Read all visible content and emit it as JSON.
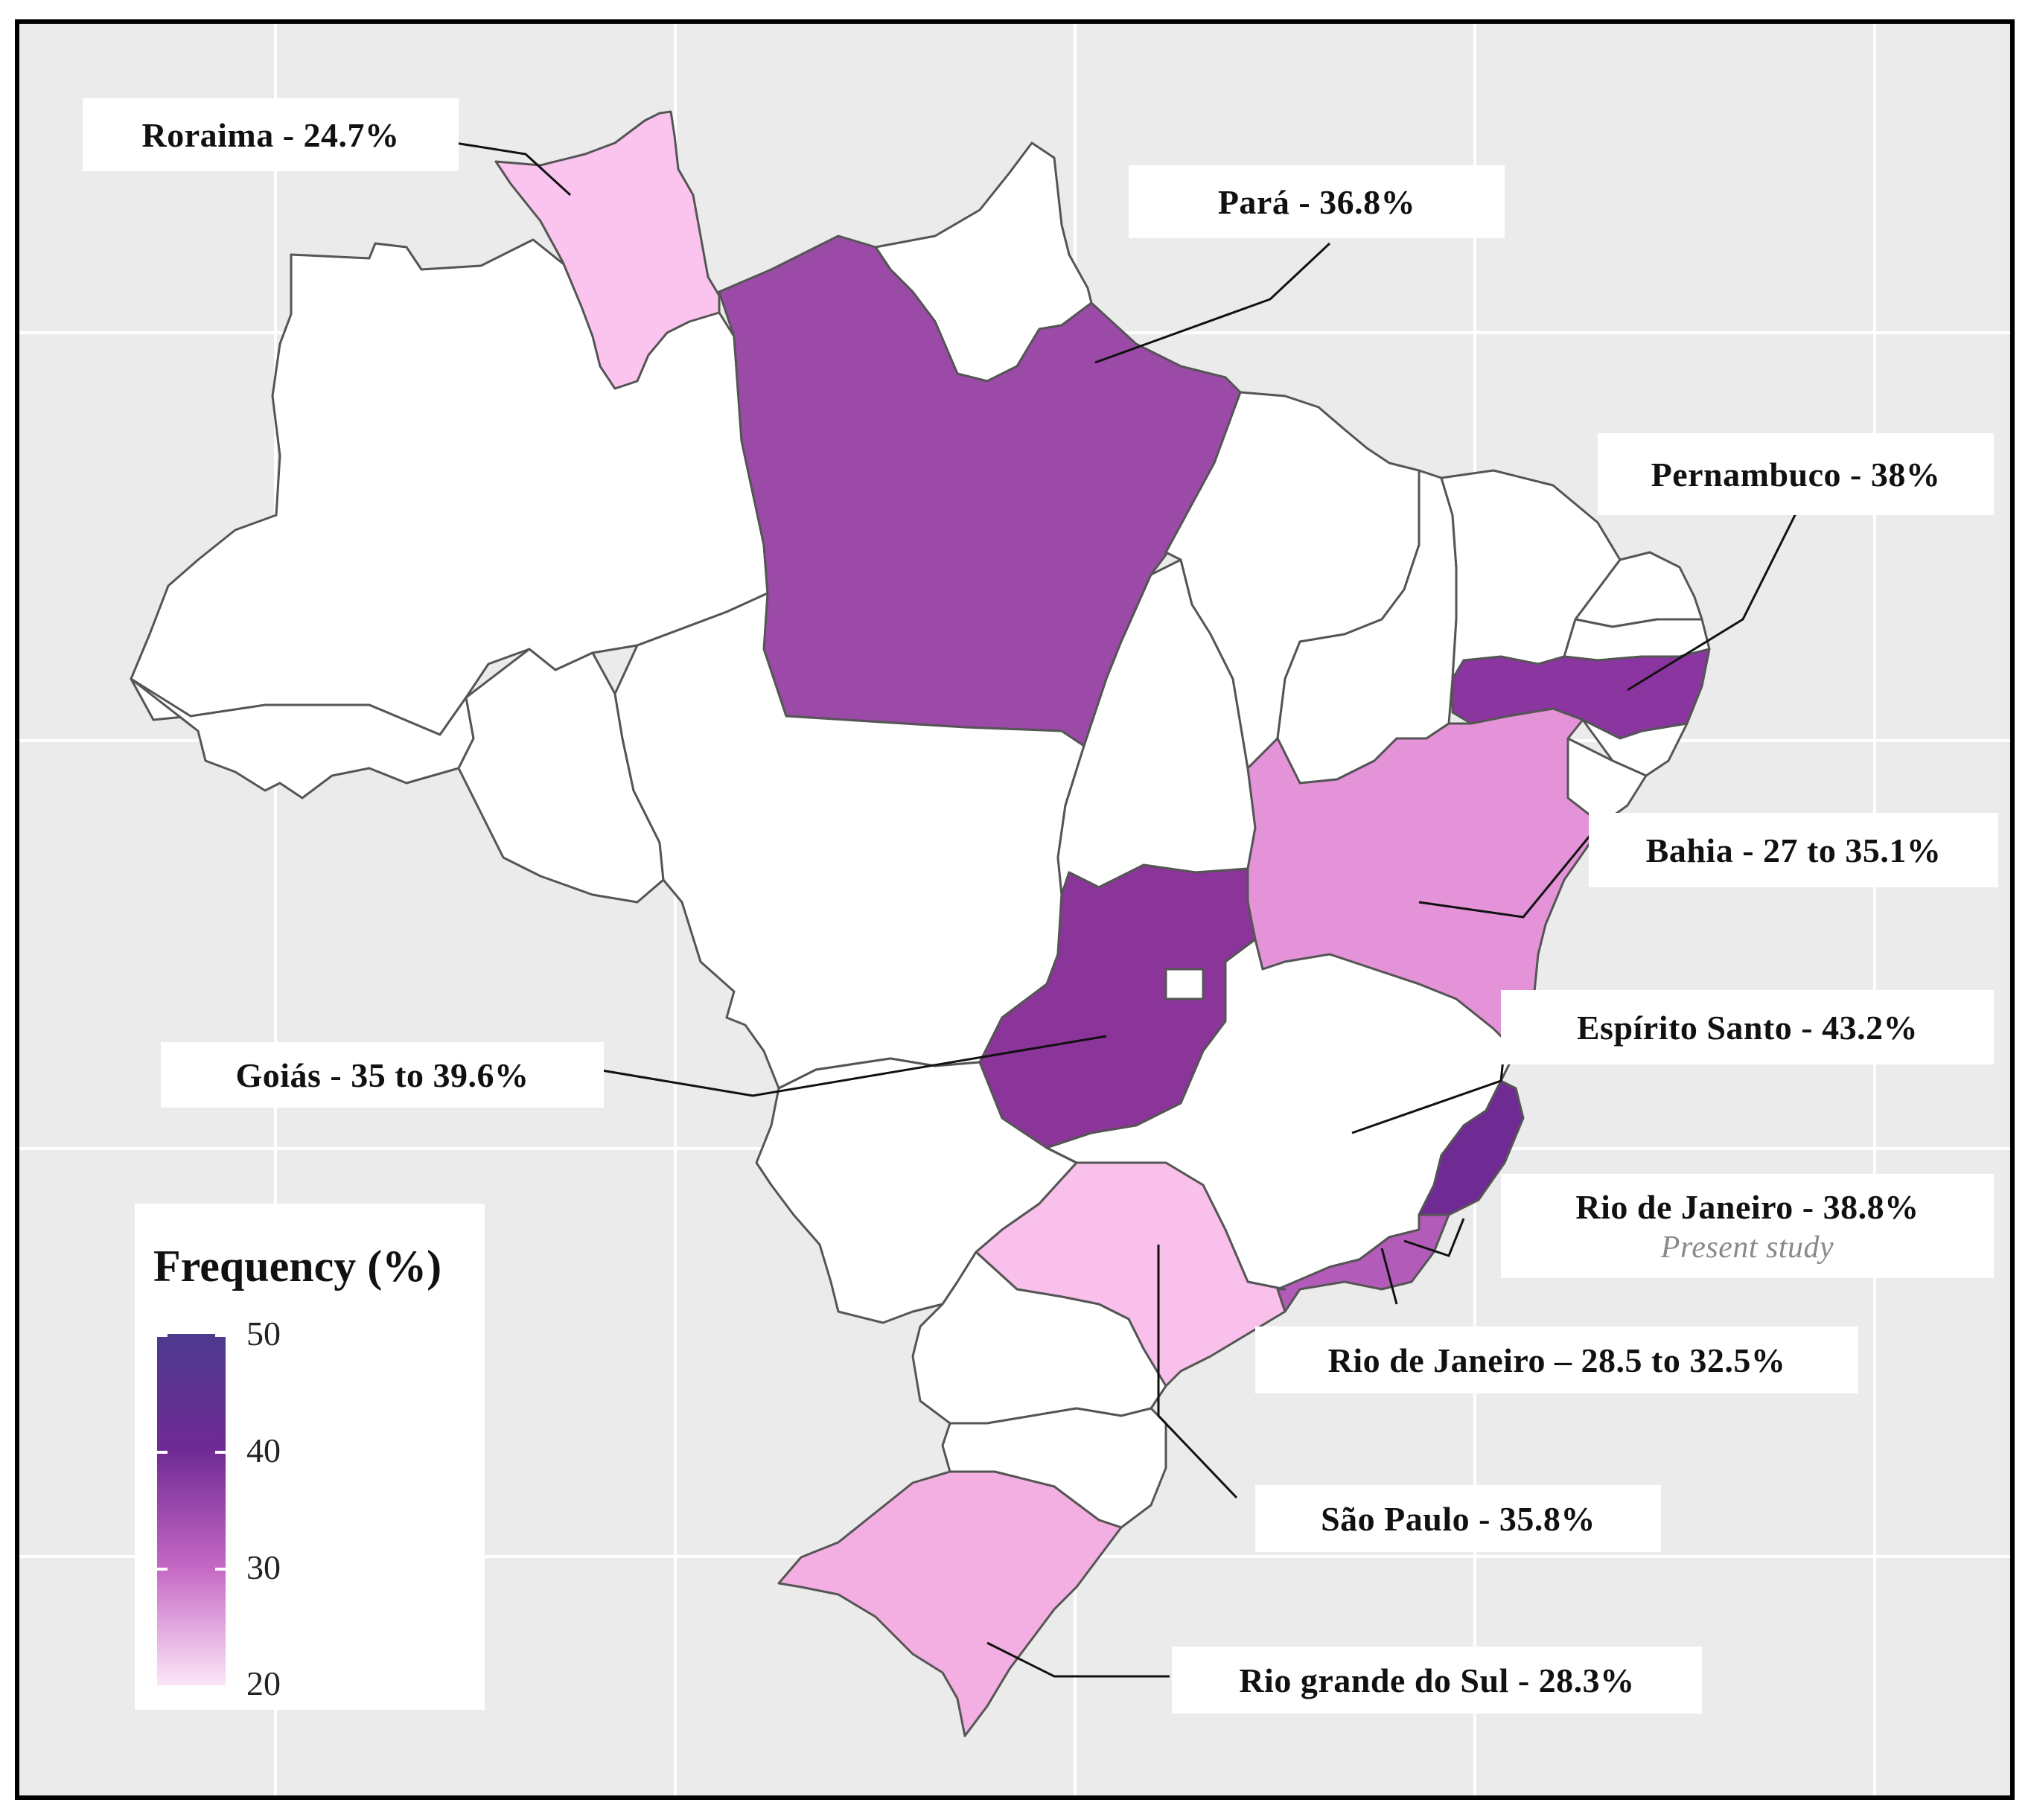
{
  "legend": {
    "title": "Frequency (%)",
    "ticks": [
      "50",
      "40",
      "30",
      "20"
    ],
    "range": [
      20,
      50
    ],
    "colors": {
      "low": "#fde6f8",
      "mid": "#c466c4",
      "high": "#4d3a8f"
    }
  },
  "labels": {
    "roraima": "Roraima - 24.7%",
    "para": "Pará - 36.8%",
    "pernambuco": "Pernambuco  - 38%",
    "bahia": "Bahia - 27 to 35.1%",
    "espirito_santo": "Espírito  Santo - 43.2%",
    "goias": "Goiás - 35 to 39.6%",
    "rio_present": "Rio de Janeiro - 38.8%",
    "rio_present_note": "Present study",
    "rio_other": "Rio de Janeiro – 28.5 to 32.5%",
    "sao_paulo": "São Paulo - 35.8%",
    "rio_grande_do_sul": "Rio grande  do Sul - 28.3%"
  },
  "region_colors": {
    "roraima": "#fbc4ef",
    "para": "#9b4aa8",
    "pernambuco": "#8a35a0",
    "bahia": "#e493d8",
    "goias": "#8b3499",
    "espirito_santo": "#6f2a94",
    "rio_de_janeiro": "#b35bb9",
    "sao_paulo": "#f8c0ea",
    "rio_grande_do_sul": "#f3afe2",
    "other": "#ffffff"
  },
  "map_values": {
    "roraima": 24.7,
    "para": 36.8,
    "pernambuco": 38,
    "bahia": [
      27,
      35.1
    ],
    "espirito_santo": 43.2,
    "goias": [
      35,
      39.6
    ],
    "rio_de_janeiro_present": 38.8,
    "rio_de_janeiro_other": [
      28.5,
      32.5
    ],
    "sao_paulo": 35.8,
    "rio_grande_do_sul": 28.3
  }
}
